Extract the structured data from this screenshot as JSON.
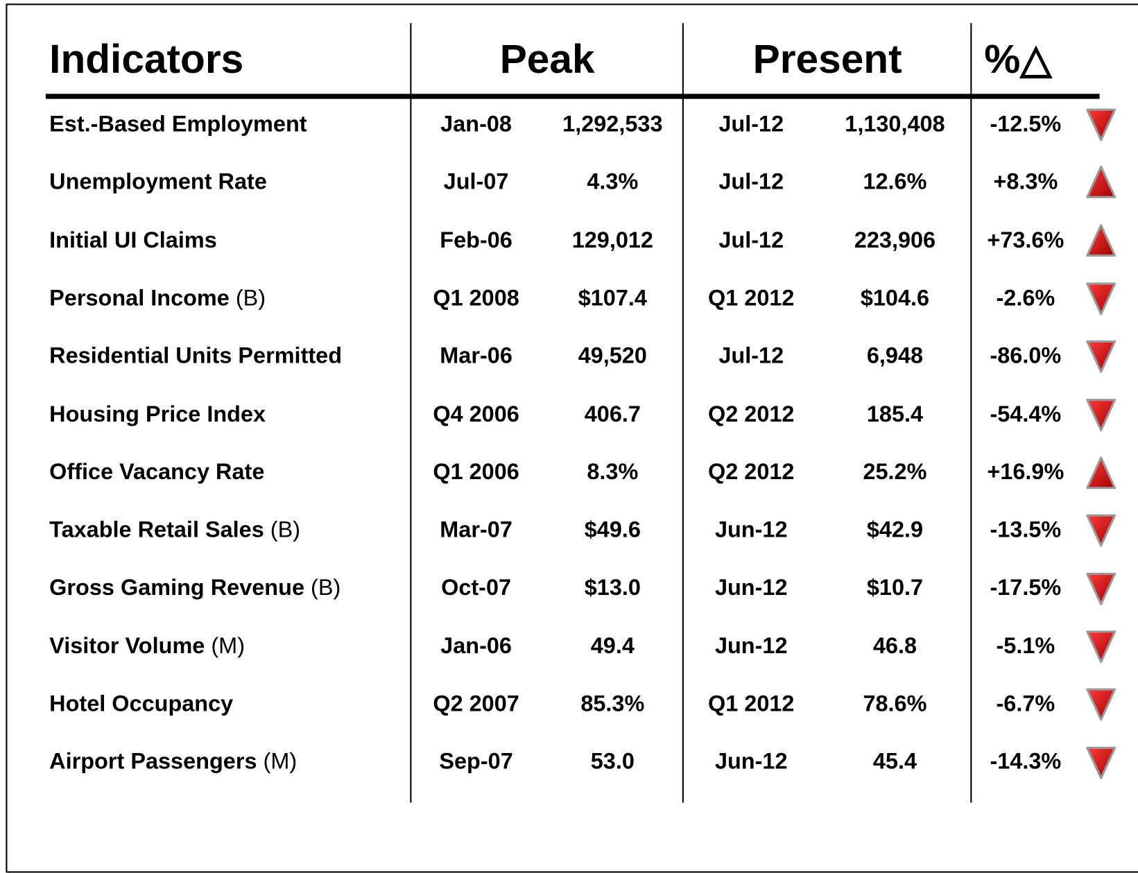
{
  "header": {
    "indicators": "Indicators",
    "peak": "Peak",
    "present": "Present",
    "change": "%△"
  },
  "rows": [
    {
      "indicator": "Est.-Based Employment",
      "peak_date": "Jan-08",
      "peak_value": "1,292,533",
      "present_date": "Jul-12",
      "present_value": "1,130,408",
      "change": "-12.5%"
    },
    {
      "indicator": "Unemployment Rate",
      "peak_date": "Jul-07",
      "peak_value": "4.3%",
      "present_date": "Jul-12",
      "present_value": "12.6%",
      "change": "+8.3%"
    },
    {
      "indicator": "Initial UI Claims",
      "peak_date": "Feb-06",
      "peak_value": "129,012",
      "present_date": "Jul-12",
      "present_value": "223,906",
      "change": "+73.6%"
    },
    {
      "indicator": "Personal Income",
      "unit": "(B)",
      "peak_date": "Q1 2008",
      "peak_value": "$107.4",
      "present_date": "Q1 2012",
      "present_value": "$104.6",
      "change": "-2.6%"
    },
    {
      "indicator": "Residential Units Permitted",
      "peak_date": "Mar-06",
      "peak_value": "49,520",
      "present_date": "Jul-12",
      "present_value": "6,948",
      "change": "-86.0%"
    },
    {
      "indicator": "Housing Price Index",
      "peak_date": "Q4 2006",
      "peak_value": "406.7",
      "present_date": "Q2 2012",
      "present_value": "185.4",
      "change": "-54.4%"
    },
    {
      "indicator": "Office Vacancy Rate",
      "peak_date": "Q1 2006",
      "peak_value": "8.3%",
      "present_date": "Q2 2012",
      "present_value": "25.2%",
      "change": "+16.9%"
    },
    {
      "indicator": "Taxable Retail Sales",
      "unit": "(B)",
      "peak_date": "Mar-07",
      "peak_value": "$49.6",
      "present_date": "Jun-12",
      "present_value": "$42.9",
      "change": "-13.5%"
    },
    {
      "indicator": "Gross Gaming Revenue",
      "unit": "(B)",
      "peak_date": "Oct-07",
      "peak_value": "$13.0",
      "present_date": "Jun-12",
      "present_value": "$10.7",
      "change": "-17.5%"
    },
    {
      "indicator": "Visitor Volume",
      "unit": "(M)",
      "peak_date": "Jan-06",
      "peak_value": "49.4",
      "present_date": "Jun-12",
      "present_value": "46.8",
      "change": "-5.1%"
    },
    {
      "indicator": "Hotel Occupancy",
      "peak_date": "Q2 2007",
      "peak_value": "85.3%",
      "present_date": "Q1 2012",
      "present_value": "78.6%",
      "change": "-6.7%"
    },
    {
      "indicator": "Airport Passengers",
      "unit": "(M)",
      "peak_date": "Sep-07",
      "peak_value": "53.0",
      "present_date": "Jun-12",
      "present_value": "45.4",
      "change": "-14.3%"
    }
  ]
}
